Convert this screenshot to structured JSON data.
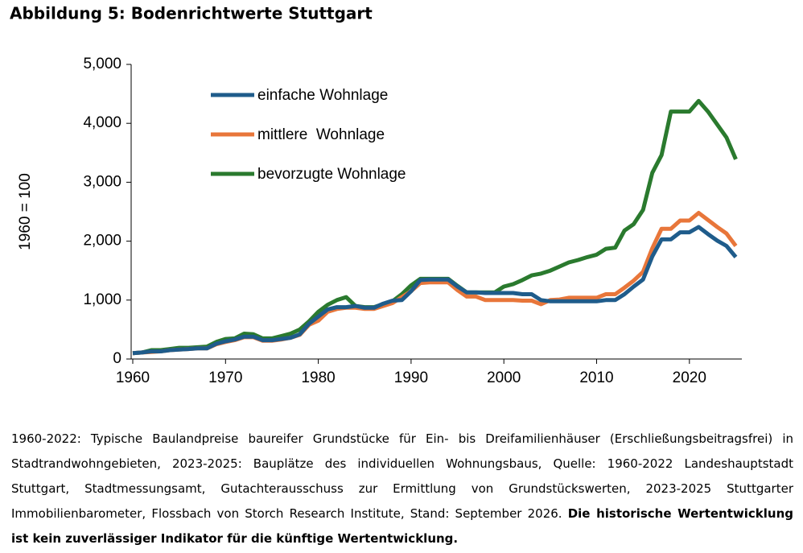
{
  "chart_data": {
    "type": "line",
    "title": "Abbildung 5: Bodenrichtwerte Stuttgart",
    "y_label": "1960 = 100",
    "x": [
      1960,
      1961,
      1962,
      1963,
      1964,
      1965,
      1966,
      1967,
      1968,
      1969,
      1970,
      1971,
      1972,
      1973,
      1974,
      1975,
      1976,
      1977,
      1978,
      1979,
      1980,
      1981,
      1982,
      1983,
      1984,
      1985,
      1986,
      1987,
      1988,
      1989,
      1990,
      1991,
      1992,
      1993,
      1994,
      1995,
      1996,
      1997,
      1998,
      1999,
      2000,
      2001,
      2002,
      2003,
      2004,
      2005,
      2006,
      2007,
      2008,
      2009,
      2010,
      2011,
      2012,
      2013,
      2014,
      2015,
      2016,
      2017,
      2018,
      2019,
      2020,
      2021,
      2022,
      2023,
      2024,
      2025
    ],
    "xlim": [
      1960,
      2026
    ],
    "xticks": [
      1960,
      1970,
      1980,
      1990,
      2000,
      2010,
      2020
    ],
    "ylim": [
      0,
      5000
    ],
    "yticks": [
      0,
      {
        "value": 1000,
        "label": "1,000"
      },
      {
        "value": 2000,
        "label": "2,000"
      },
      {
        "value": 3000,
        "label": "3,000"
      },
      {
        "value": 4000,
        "label": "4,000"
      },
      {
        "value": 5000,
        "label": "5,000"
      }
    ],
    "legend": "upper left",
    "series": [
      {
        "name": "einfache Wohnlage",
        "color": "#1f5c8b",
        "values": [
          100,
          110,
          130,
          130,
          150,
          160,
          170,
          180,
          180,
          260,
          300,
          330,
          380,
          380,
          320,
          320,
          340,
          360,
          420,
          600,
          720,
          840,
          880,
          880,
          900,
          870,
          870,
          940,
          990,
          1000,
          1150,
          1340,
          1350,
          1350,
          1350,
          1230,
          1130,
          1130,
          1120,
          1120,
          1120,
          1120,
          1100,
          1100,
          1000,
          980,
          980,
          980,
          980,
          980,
          980,
          1000,
          1000,
          1100,
          1230,
          1350,
          1740,
          2030,
          2030,
          2150,
          2150,
          2240,
          2120,
          2010,
          1920,
          1730
        ]
      },
      {
        "name": "mittlere  Wohnlage",
        "color": "#e8763a",
        "values": [
          100,
          110,
          120,
          130,
          150,
          160,
          170,
          180,
          180,
          250,
          290,
          320,
          370,
          370,
          310,
          310,
          330,
          360,
          410,
          580,
          650,
          800,
          850,
          870,
          870,
          850,
          850,
          900,
          950,
          1050,
          1150,
          1290,
          1300,
          1300,
          1300,
          1170,
          1060,
          1060,
          1000,
          1000,
          1000,
          1000,
          990,
          990,
          930,
          1000,
          1010,
          1040,
          1040,
          1040,
          1040,
          1100,
          1100,
          1210,
          1330,
          1480,
          1880,
          2210,
          2210,
          2350,
          2350,
          2480,
          2360,
          2240,
          2130,
          1920
        ]
      },
      {
        "name": "bevorzugte Wohnlage",
        "color": "#2a7a2e",
        "values": [
          100,
          110,
          150,
          150,
          170,
          190,
          190,
          200,
          210,
          290,
          340,
          350,
          430,
          420,
          350,
          350,
          390,
          430,
          500,
          640,
          800,
          920,
          1000,
          1050,
          900,
          880,
          880,
          930,
          980,
          1100,
          1250,
          1360,
          1360,
          1360,
          1360,
          1240,
          1130,
          1130,
          1130,
          1130,
          1230,
          1270,
          1340,
          1420,
          1450,
          1500,
          1570,
          1640,
          1680,
          1730,
          1770,
          1870,
          1890,
          2180,
          2290,
          2530,
          3160,
          3460,
          4200,
          4200,
          4200,
          4380,
          4200,
          3980,
          3760,
          3390
        ]
      }
    ],
    "note": "1960-2022: Typische Baulandpreise baureifer Grundstücke für Ein- bis Dreifamilienhäuser (Erschließungsbeitragsfrei) in Stadtrandwohngebieten, 2023-2025: Bauplätze des individuellen Wohnungsbaus, Quelle: 1960-2022 Landeshauptstadt Stuttgart, Stadtmessungsamt, Gutachterausschuss zur Ermittlung von Grundstückswerten, 2023-2025 Stuttgarter Immobilienbarometer, Flossbach von Storch Research Institute, Stand: September 2026.",
    "note_bold": "Die historische Wertentwicklung ist kein zuverlässiger Indikator für die künftige Wertentwicklung."
  }
}
